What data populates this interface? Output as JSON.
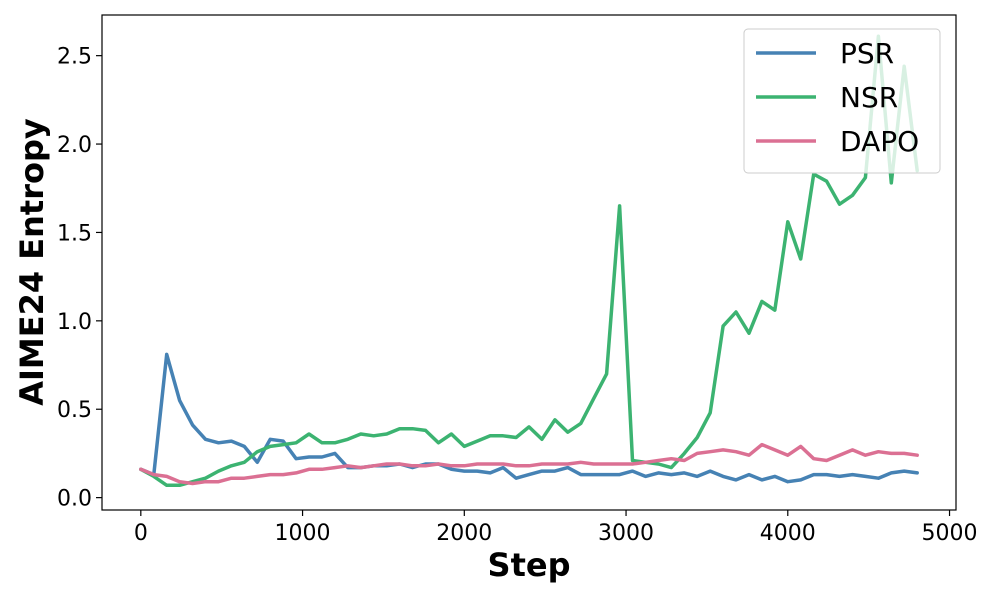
{
  "chart_data": {
    "type": "line",
    "xlabel": "Step",
    "ylabel": "AIME24 Entropy",
    "xlim": [
      -240,
      5040
    ],
    "ylim": [
      -0.07,
      2.73
    ],
    "xticks": [
      0,
      1000,
      2000,
      3000,
      4000,
      5000
    ],
    "yticks": [
      0.0,
      0.5,
      1.0,
      1.5,
      2.0,
      2.5
    ],
    "xtick_labels": [
      "0",
      "1000",
      "2000",
      "3000",
      "4000",
      "5000"
    ],
    "ytick_labels": [
      "0.0",
      "0.5",
      "1.0",
      "1.5",
      "2.0",
      "2.5"
    ],
    "grid": false,
    "legend_position": "top-right",
    "series": [
      {
        "name": "PSR",
        "color": "#4682b4",
        "x": [
          0,
          80,
          160,
          240,
          320,
          400,
          480,
          560,
          640,
          720,
          800,
          880,
          960,
          1040,
          1120,
          1200,
          1280,
          1360,
          1440,
          1520,
          1600,
          1680,
          1760,
          1840,
          1920,
          2000,
          2080,
          2160,
          2240,
          2320,
          2400,
          2480,
          2560,
          2640,
          2720,
          2800,
          2880,
          2960,
          3040,
          3120,
          3200,
          3280,
          3360,
          3440,
          3520,
          3600,
          3680,
          3760,
          3840,
          3920,
          4000,
          4080,
          4160,
          4240,
          4320,
          4400,
          4480,
          4560,
          4640,
          4720,
          4800
        ],
        "y": [
          0.16,
          0.13,
          0.81,
          0.55,
          0.41,
          0.33,
          0.31,
          0.32,
          0.29,
          0.2,
          0.33,
          0.32,
          0.22,
          0.23,
          0.23,
          0.25,
          0.17,
          0.17,
          0.18,
          0.18,
          0.19,
          0.17,
          0.19,
          0.19,
          0.16,
          0.15,
          0.15,
          0.14,
          0.17,
          0.11,
          0.13,
          0.15,
          0.15,
          0.17,
          0.13,
          0.13,
          0.13,
          0.13,
          0.15,
          0.12,
          0.14,
          0.13,
          0.14,
          0.12,
          0.15,
          0.12,
          0.1,
          0.13,
          0.1,
          0.12,
          0.09,
          0.1,
          0.13,
          0.13,
          0.12,
          0.13,
          0.12,
          0.11,
          0.14,
          0.15,
          0.14
        ]
      },
      {
        "name": "NSR",
        "color": "#3cb371",
        "x": [
          0,
          80,
          160,
          240,
          320,
          400,
          480,
          560,
          640,
          720,
          800,
          880,
          960,
          1040,
          1120,
          1200,
          1280,
          1360,
          1440,
          1520,
          1600,
          1680,
          1760,
          1840,
          1920,
          2000,
          2080,
          2160,
          2240,
          2320,
          2400,
          2480,
          2560,
          2640,
          2720,
          2800,
          2880,
          2960,
          3040,
          3120,
          3200,
          3280,
          3360,
          3440,
          3520,
          3600,
          3680,
          3760,
          3840,
          3920,
          4000,
          4080,
          4160,
          4240,
          4320,
          4400,
          4480,
          4560,
          4640,
          4720,
          4800
        ],
        "y": [
          0.16,
          0.12,
          0.07,
          0.07,
          0.09,
          0.11,
          0.15,
          0.18,
          0.2,
          0.26,
          0.29,
          0.3,
          0.31,
          0.36,
          0.31,
          0.31,
          0.33,
          0.36,
          0.35,
          0.36,
          0.39,
          0.39,
          0.38,
          0.31,
          0.36,
          0.29,
          0.32,
          0.35,
          0.35,
          0.34,
          0.4,
          0.33,
          0.44,
          0.37,
          0.42,
          0.56,
          0.7,
          1.65,
          0.21,
          0.2,
          0.19,
          0.17,
          0.25,
          0.34,
          0.48,
          0.97,
          1.05,
          0.93,
          1.11,
          1.06,
          1.56,
          1.35,
          1.83,
          1.79,
          1.66,
          1.71,
          1.81,
          2.61,
          1.78,
          2.44,
          1.85
        ]
      },
      {
        "name": "DAPO",
        "color": "#db7093",
        "x": [
          0,
          80,
          160,
          240,
          320,
          400,
          480,
          560,
          640,
          720,
          800,
          880,
          960,
          1040,
          1120,
          1200,
          1280,
          1360,
          1440,
          1520,
          1600,
          1680,
          1760,
          1840,
          1920,
          2000,
          2080,
          2160,
          2240,
          2320,
          2400,
          2480,
          2560,
          2640,
          2720,
          2800,
          2880,
          2960,
          3040,
          3120,
          3200,
          3280,
          3360,
          3440,
          3520,
          3600,
          3680,
          3760,
          3840,
          3920,
          4000,
          4080,
          4160,
          4240,
          4320,
          4400,
          4480,
          4560,
          4640,
          4720,
          4800
        ],
        "y": [
          0.16,
          0.13,
          0.12,
          0.09,
          0.08,
          0.09,
          0.09,
          0.11,
          0.11,
          0.12,
          0.13,
          0.13,
          0.14,
          0.16,
          0.16,
          0.17,
          0.18,
          0.17,
          0.18,
          0.19,
          0.19,
          0.18,
          0.18,
          0.19,
          0.18,
          0.18,
          0.19,
          0.19,
          0.19,
          0.18,
          0.18,
          0.19,
          0.19,
          0.19,
          0.2,
          0.19,
          0.19,
          0.19,
          0.19,
          0.2,
          0.21,
          0.22,
          0.21,
          0.25,
          0.26,
          0.27,
          0.26,
          0.24,
          0.3,
          0.27,
          0.24,
          0.29,
          0.22,
          0.21,
          0.24,
          0.27,
          0.24,
          0.26,
          0.25,
          0.25,
          0.24
        ]
      }
    ]
  }
}
